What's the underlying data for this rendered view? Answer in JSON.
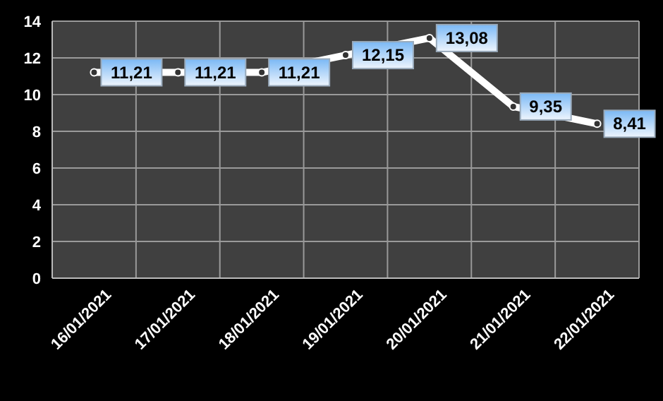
{
  "chart_data": {
    "type": "line",
    "categories": [
      "16/01/2021",
      "17/01/2021",
      "18/01/2021",
      "19/01/2021",
      "20/01/2021",
      "21/01/2021",
      "22/01/2021"
    ],
    "series": [
      {
        "color": "#ffffff",
        "values": [
          11.21,
          11.21,
          11.21,
          12.15,
          13.08,
          9.35,
          8.41
        ],
        "value_labels": [
          "11,21",
          "11,21",
          "11,21",
          "12,15",
          "13,08",
          "9,35",
          "8,41"
        ]
      }
    ],
    "ylim": [
      0,
      14
    ],
    "yticks": [
      0,
      2,
      4,
      6,
      8,
      10,
      12,
      14
    ],
    "grid": true,
    "marker": "circle"
  }
}
